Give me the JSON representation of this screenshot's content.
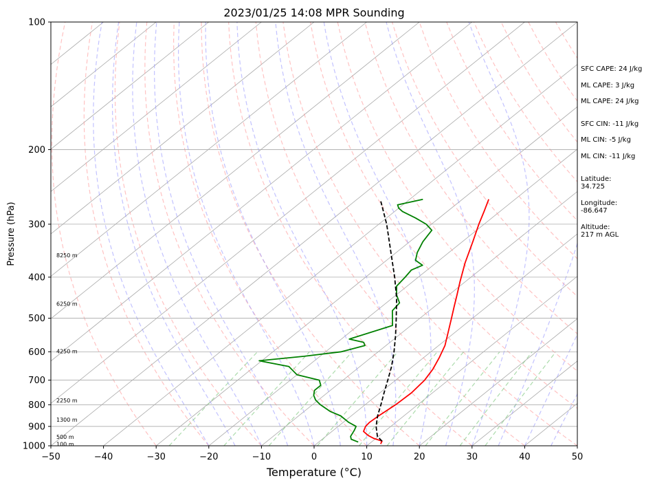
{
  "chart_data": {
    "type": "skew-t",
    "title": "2023/01/25 14:08 MPR Sounding",
    "xlabel": "Temperature (°C)",
    "ylabel": "Pressure (hPa)",
    "xlim": [
      -50,
      50
    ],
    "ylim": [
      1000,
      100
    ],
    "y_scale": "log",
    "x_ticks": [
      "−50",
      "−40",
      "−30",
      "−20",
      "−10",
      "0",
      "10",
      "20",
      "30",
      "40",
      "50"
    ],
    "y_ticks": [
      100,
      200,
      300,
      400,
      500,
      600,
      700,
      800,
      900,
      1000
    ],
    "grid": true,
    "colors": {
      "temperature": "#ff0000",
      "dewpoint": "#008000",
      "parcel": "#000000",
      "isotherm": "#a9a9a9",
      "dry_adiabat": "#ff9999",
      "moist_adiabat": "#9999ff",
      "mixing_ratio": "#88cc88"
    },
    "series": [
      {
        "key": "temperature",
        "points": [
          [
            990,
            12.2
          ],
          [
            975,
            11.8
          ],
          [
            960,
            9.5
          ],
          [
            945,
            7.8
          ],
          [
            925,
            6.0
          ],
          [
            900,
            5.2
          ],
          [
            880,
            5.0
          ],
          [
            850,
            5.2
          ],
          [
            800,
            5.8
          ],
          [
            750,
            6.0
          ],
          [
            700,
            5.5
          ],
          [
            660,
            4.5
          ],
          [
            620,
            3.0
          ],
          [
            580,
            1.2
          ],
          [
            540,
            -1.3
          ],
          [
            500,
            -4.0
          ],
          [
            470,
            -6.2
          ],
          [
            440,
            -8.5
          ],
          [
            410,
            -11.0
          ],
          [
            370,
            -14.5
          ],
          [
            330,
            -18.0
          ],
          [
            300,
            -21.0
          ],
          [
            280,
            -23.0
          ],
          [
            262,
            -25.0
          ]
        ]
      },
      {
        "key": "dewpoint",
        "points": [
          [
            980,
            7.5
          ],
          [
            965,
            5.5
          ],
          [
            950,
            4.7
          ],
          [
            920,
            4.0
          ],
          [
            900,
            3.4
          ],
          [
            880,
            1.0
          ],
          [
            850,
            -2.0
          ],
          [
            830,
            -5.0
          ],
          [
            800,
            -8.5
          ],
          [
            780,
            -10.5
          ],
          [
            760,
            -12.0
          ],
          [
            740,
            -13.0
          ],
          [
            720,
            -13.0
          ],
          [
            700,
            -14.5
          ],
          [
            680,
            -20.0
          ],
          [
            650,
            -23.5
          ],
          [
            630,
            -30.5
          ],
          [
            615,
            -23.0
          ],
          [
            600,
            -17.0
          ],
          [
            580,
            -14.0
          ],
          [
            570,
            -15.0
          ],
          [
            560,
            -18.5
          ],
          [
            520,
            -13.5
          ],
          [
            480,
            -17.0
          ],
          [
            460,
            -17.5
          ],
          [
            440,
            -20.0
          ],
          [
            420,
            -22.0
          ],
          [
            400,
            -22.5
          ],
          [
            385,
            -23.0
          ],
          [
            375,
            -22.0
          ],
          [
            365,
            -24.5
          ],
          [
            350,
            -26.0
          ],
          [
            330,
            -27.5
          ],
          [
            320,
            -28.0
          ],
          [
            310,
            -28.5
          ],
          [
            300,
            -31.0
          ],
          [
            290,
            -34.5
          ],
          [
            280,
            -38.5
          ],
          [
            275,
            -40.0
          ],
          [
            270,
            -41.0
          ],
          [
            262,
            -37.5
          ]
        ]
      },
      {
        "key": "parcel",
        "points": [
          [
            975,
            11.8
          ],
          [
            950,
            9.8
          ],
          [
            900,
            7.2
          ],
          [
            850,
            5.0
          ],
          [
            800,
            3.0
          ],
          [
            750,
            0.8
          ],
          [
            700,
            -1.5
          ],
          [
            650,
            -4.0
          ],
          [
            600,
            -7.0
          ],
          [
            550,
            -10.5
          ],
          [
            500,
            -14.5
          ],
          [
            450,
            -19.0
          ],
          [
            400,
            -24.5
          ],
          [
            350,
            -31.0
          ],
          [
            300,
            -38.5
          ],
          [
            265,
            -45.0
          ]
        ]
      }
    ],
    "height_labels": [
      {
        "p": 990,
        "label": "100 m"
      },
      {
        "p": 952,
        "label": "500 m"
      },
      {
        "p": 868,
        "label": "1300 m"
      },
      {
        "p": 782,
        "label": "2250 m"
      },
      {
        "p": 598,
        "label": "4250 m"
      },
      {
        "p": 462,
        "label": "6250 m"
      },
      {
        "p": 355,
        "label": "8250 m"
      }
    ]
  },
  "info": {
    "sfc_cape": "SFC CAPE: 24 J/kg",
    "ml_cape_1": "ML CAPE: 3 J/kg",
    "ml_cape_2": "ML CAPE: 24 J/kg",
    "sfc_cin": "SFC CIN: -11 J/kg",
    "ml_cin_1": "ML CIN: -5 J/kg",
    "ml_cin_2": "ML CIN: -11 J/kg",
    "latitude_label": "Latitude:",
    "latitude_value": "34.725",
    "longitude_label": "Longitude:",
    "longitude_value": "-86.647",
    "altitude_label": "Altitude:",
    "altitude_value": "217 m AGL"
  }
}
